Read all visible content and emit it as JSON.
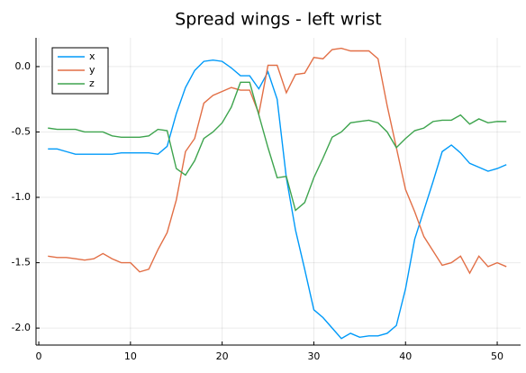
{
  "chart_data": {
    "type": "line",
    "title": "Spread wings - left wrist",
    "x": [
      1,
      2,
      3,
      4,
      5,
      6,
      7,
      8,
      9,
      10,
      11,
      12,
      13,
      14,
      15,
      16,
      17,
      18,
      19,
      20,
      21,
      22,
      23,
      24,
      25,
      26,
      27,
      28,
      29,
      30,
      31,
      32,
      33,
      34,
      35,
      36,
      37,
      38,
      39,
      40,
      41,
      42,
      43,
      44,
      45,
      46,
      47,
      48,
      49,
      50,
      51
    ],
    "series": [
      {
        "name": "x",
        "color": "#009af9",
        "values": [
          -0.63,
          -0.63,
          -0.65,
          -0.67,
          -0.67,
          -0.67,
          -0.67,
          -0.67,
          -0.66,
          -0.66,
          -0.66,
          -0.66,
          -0.67,
          -0.61,
          -0.36,
          -0.16,
          -0.03,
          0.04,
          0.05,
          0.04,
          -0.01,
          -0.07,
          -0.07,
          -0.17,
          -0.04,
          -0.25,
          -0.85,
          -1.25,
          -1.55,
          -1.86,
          -1.92,
          -2.0,
          -2.08,
          -2.04,
          -2.07,
          -2.06,
          -2.06,
          -2.04,
          -1.98,
          -1.7,
          -1.32,
          -1.1,
          -0.88,
          -0.65,
          -0.6,
          -0.66,
          -0.74,
          -0.77,
          -0.8,
          -0.78,
          -0.75
        ]
      },
      {
        "name": "y",
        "color": "#e26f46",
        "values": [
          -1.45,
          -1.46,
          -1.46,
          -1.47,
          -1.48,
          -1.47,
          -1.43,
          -1.47,
          -1.5,
          -1.5,
          -1.57,
          -1.55,
          -1.4,
          -1.27,
          -1.02,
          -0.65,
          -0.55,
          -0.28,
          -0.22,
          -0.19,
          -0.16,
          -0.18,
          -0.18,
          -0.36,
          0.01,
          0.01,
          -0.2,
          -0.06,
          -0.05,
          0.07,
          0.06,
          0.13,
          0.14,
          0.12,
          0.12,
          0.12,
          0.06,
          -0.3,
          -0.62,
          -0.94,
          -1.11,
          -1.3,
          -1.41,
          -1.52,
          -1.5,
          -1.45,
          -1.58,
          -1.45,
          -1.53,
          -1.5,
          -1.53
        ]
      },
      {
        "name": "z",
        "color": "#3ea44e",
        "values": [
          -0.47,
          -0.48,
          -0.48,
          -0.48,
          -0.5,
          -0.5,
          -0.5,
          -0.53,
          -0.54,
          -0.54,
          -0.54,
          -0.53,
          -0.48,
          -0.49,
          -0.78,
          -0.83,
          -0.72,
          -0.55,
          -0.5,
          -0.43,
          -0.31,
          -0.12,
          -0.12,
          -0.37,
          -0.62,
          -0.85,
          -0.84,
          -1.1,
          -1.04,
          -0.85,
          -0.7,
          -0.54,
          -0.5,
          -0.43,
          -0.42,
          -0.41,
          -0.43,
          -0.5,
          -0.62,
          -0.55,
          -0.49,
          -0.47,
          -0.42,
          -0.41,
          -0.41,
          -0.37,
          -0.44,
          -0.4,
          -0.43,
          -0.42,
          -0.42
        ]
      }
    ],
    "xlim": [
      -0.3,
      52.55
    ],
    "xticks": [
      0,
      10,
      20,
      30,
      40,
      50
    ],
    "ylim": [
      -2.13,
      0.22
    ],
    "yticks": [
      {
        "value": 0,
        "label": "0.0"
      },
      -0.5,
      {
        "value": -1,
        "label": "-1.0"
      },
      -1.5,
      {
        "value": -2,
        "label": "-2.0"
      }
    ],
    "grid": true,
    "legend": "top-left"
  }
}
